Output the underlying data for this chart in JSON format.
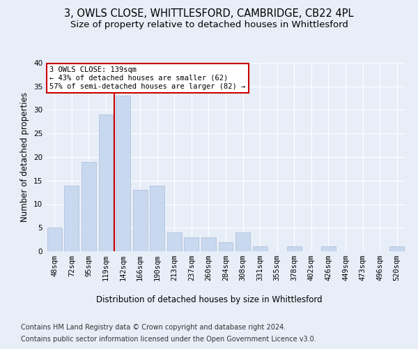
{
  "title1": "3, OWLS CLOSE, WHITTLESFORD, CAMBRIDGE, CB22 4PL",
  "title2": "Size of property relative to detached houses in Whittlesford",
  "xlabel": "Distribution of detached houses by size in Whittlesford",
  "ylabel": "Number of detached properties",
  "footer1": "Contains HM Land Registry data © Crown copyright and database right 2024.",
  "footer2": "Contains public sector information licensed under the Open Government Licence v3.0.",
  "categories": [
    "48sqm",
    "72sqm",
    "95sqm",
    "119sqm",
    "142sqm",
    "166sqm",
    "190sqm",
    "213sqm",
    "237sqm",
    "260sqm",
    "284sqm",
    "308sqm",
    "331sqm",
    "355sqm",
    "378sqm",
    "402sqm",
    "426sqm",
    "449sqm",
    "473sqm",
    "496sqm",
    "520sqm"
  ],
  "values": [
    5,
    14,
    19,
    29,
    33,
    13,
    14,
    4,
    3,
    3,
    2,
    4,
    1,
    0,
    1,
    0,
    1,
    0,
    0,
    0,
    1
  ],
  "bar_color": "#c8d8ee",
  "bar_edge_color": "#a8bcd8",
  "vline_color": "#cc0000",
  "vline_index": 3.5,
  "annotation_text": "3 OWLS CLOSE: 139sqm\n← 43% of detached houses are smaller (62)\n57% of semi-detached houses are larger (82) →",
  "annotation_box_color": "white",
  "annotation_box_edge_color": "#cc0000",
  "ylim": [
    0,
    40
  ],
  "yticks": [
    0,
    5,
    10,
    15,
    20,
    25,
    30,
    35,
    40
  ],
  "background_color": "#e8eef8",
  "axes_background": "#e8eef8",
  "grid_color": "white",
  "title1_fontsize": 10.5,
  "title2_fontsize": 9.5,
  "xlabel_fontsize": 8.5,
  "ylabel_fontsize": 8.5,
  "tick_fontsize": 7.5,
  "annot_fontsize": 7.5,
  "footer_fontsize": 7.0
}
